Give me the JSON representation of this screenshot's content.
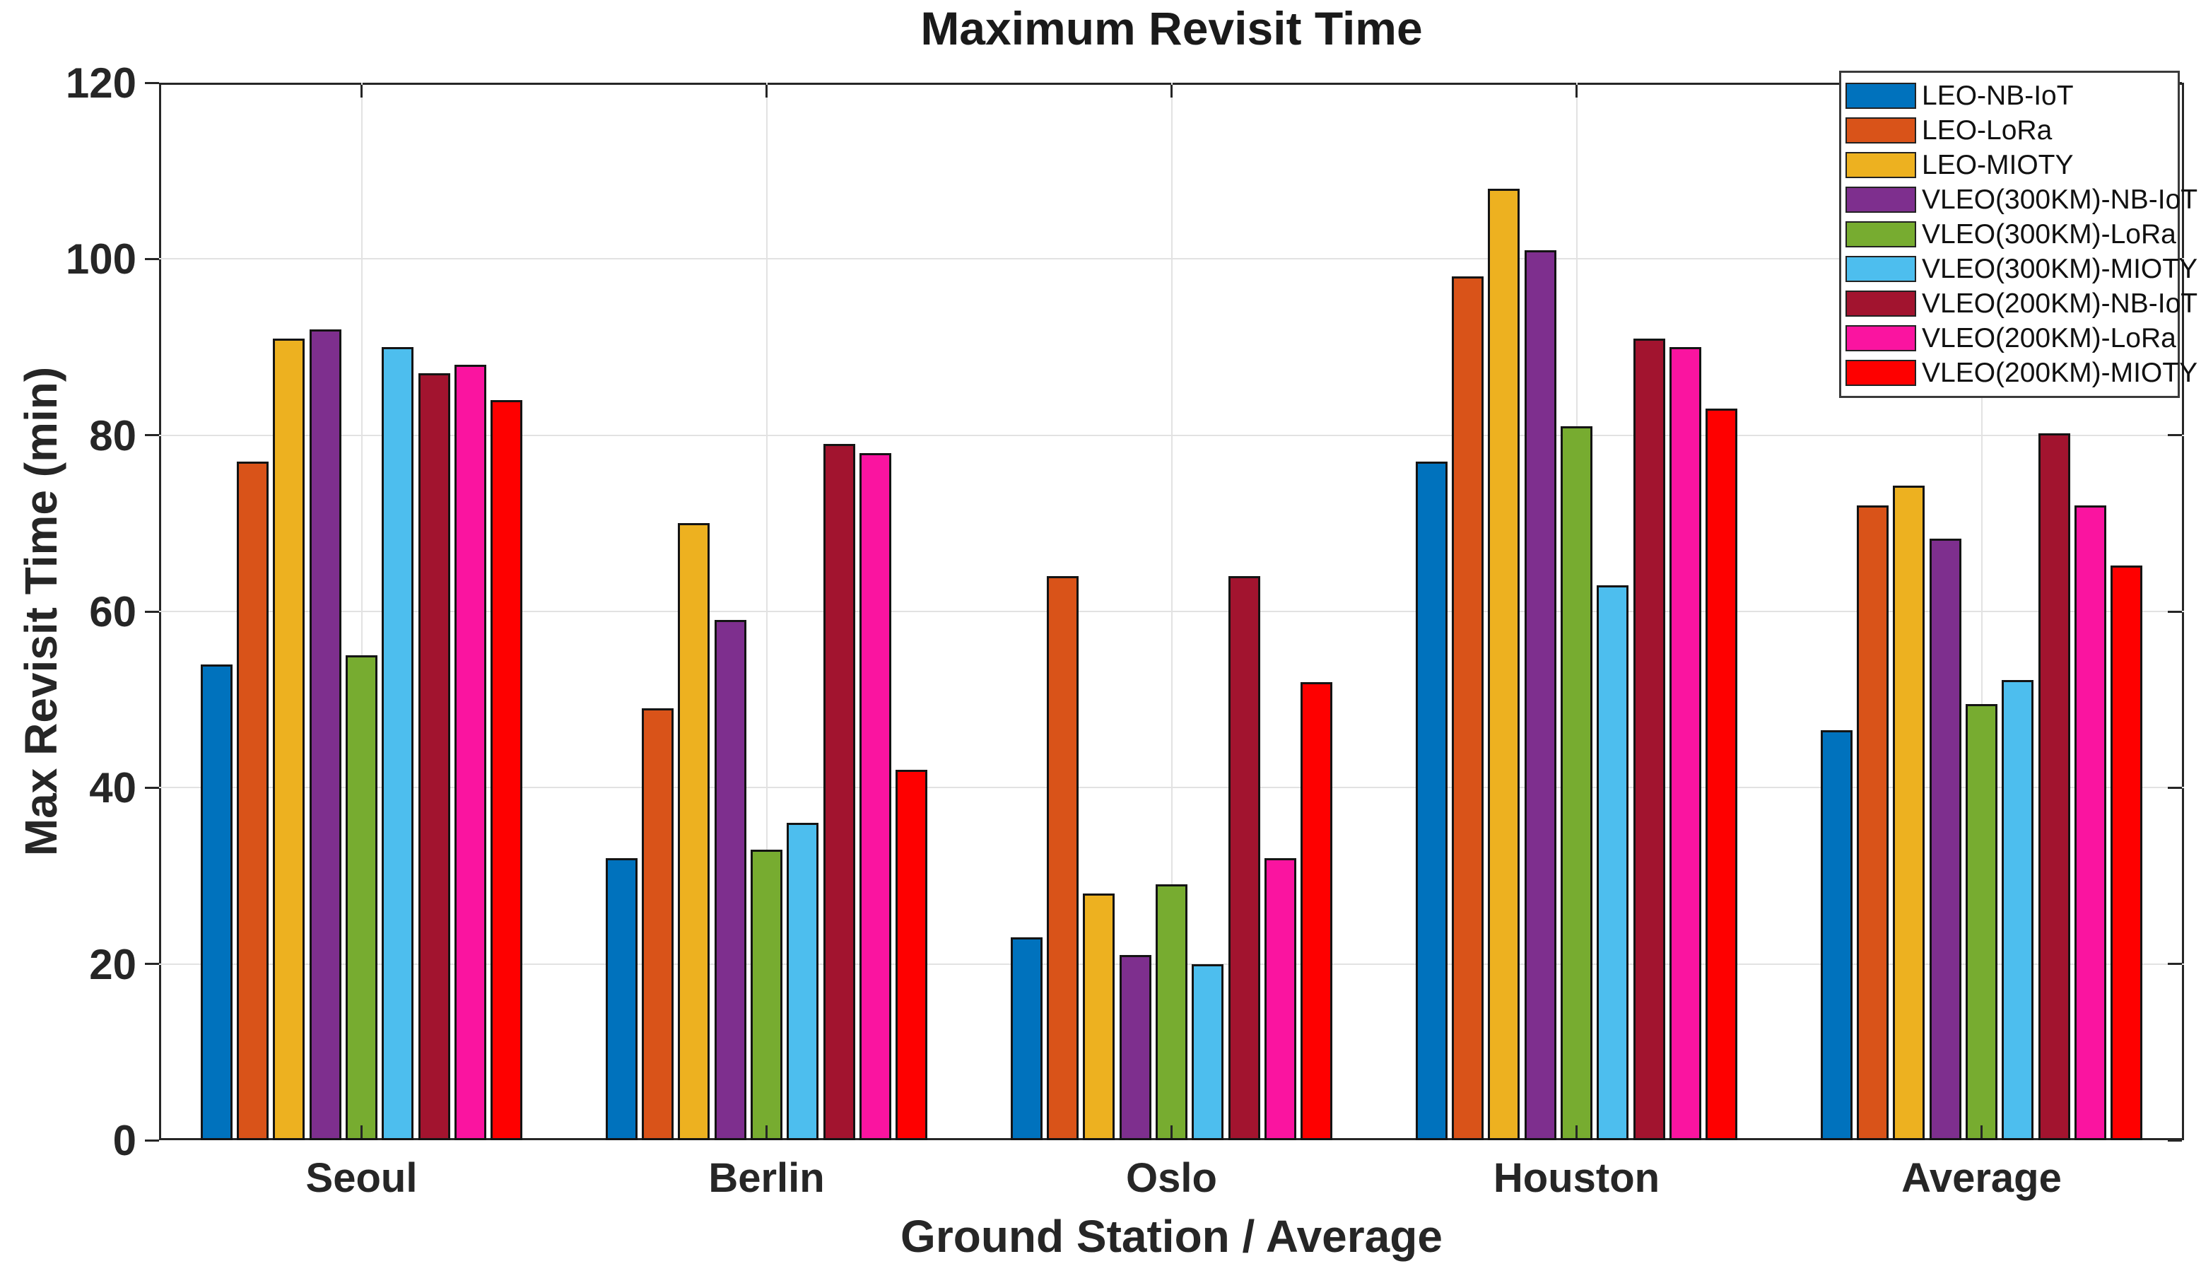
{
  "chart_data": {
    "type": "bar",
    "title": "Maximum Revisit Time",
    "xlabel": "Ground Station / Average",
    "ylabel": "Max Revisit Time (min)",
    "categories": [
      "Seoul",
      "Berlin",
      "Oslo",
      "Houston",
      "Average"
    ],
    "series": [
      {
        "name": "LEO-NB-IoT",
        "color": "#0072BD",
        "values": [
          54,
          32,
          23,
          77,
          46.5
        ]
      },
      {
        "name": "LEO-LoRa",
        "color": "#D95319",
        "values": [
          77,
          49,
          64,
          98,
          72
        ]
      },
      {
        "name": "LEO-MIOTY",
        "color": "#EDB120",
        "values": [
          91,
          70,
          28,
          108,
          74.25
        ]
      },
      {
        "name": "VLEO(300KM)-NB-IoT",
        "color": "#7E2F8E",
        "values": [
          92,
          59,
          21,
          101,
          68.25
        ]
      },
      {
        "name": "VLEO(300KM)-LoRa",
        "color": "#77AC30",
        "values": [
          55,
          33,
          29,
          81,
          49.5
        ]
      },
      {
        "name": "VLEO(300KM)-MIOTY",
        "color": "#4DBEEE",
        "values": [
          90,
          36,
          20,
          63,
          52.25
        ]
      },
      {
        "name": "VLEO(200KM)-NB-IoT",
        "color": "#A2142F",
        "values": [
          87,
          79,
          64,
          91,
          80.25
        ]
      },
      {
        "name": "VLEO(200KM)-LoRa",
        "color": "#FA14A0",
        "values": [
          88,
          78,
          32,
          90,
          72
        ]
      },
      {
        "name": "VLEO(200KM)-MIOTY",
        "color": "#FE0000",
        "values": [
          84,
          42,
          52,
          83,
          65.25
        ]
      }
    ],
    "ylim": [
      0,
      120
    ],
    "yticks": [
      0,
      20,
      40,
      60,
      80,
      100,
      120
    ],
    "grid": "both",
    "legend_position": "top-right",
    "axis_color": "#262626",
    "gridline_color": "#e2e2e2"
  }
}
